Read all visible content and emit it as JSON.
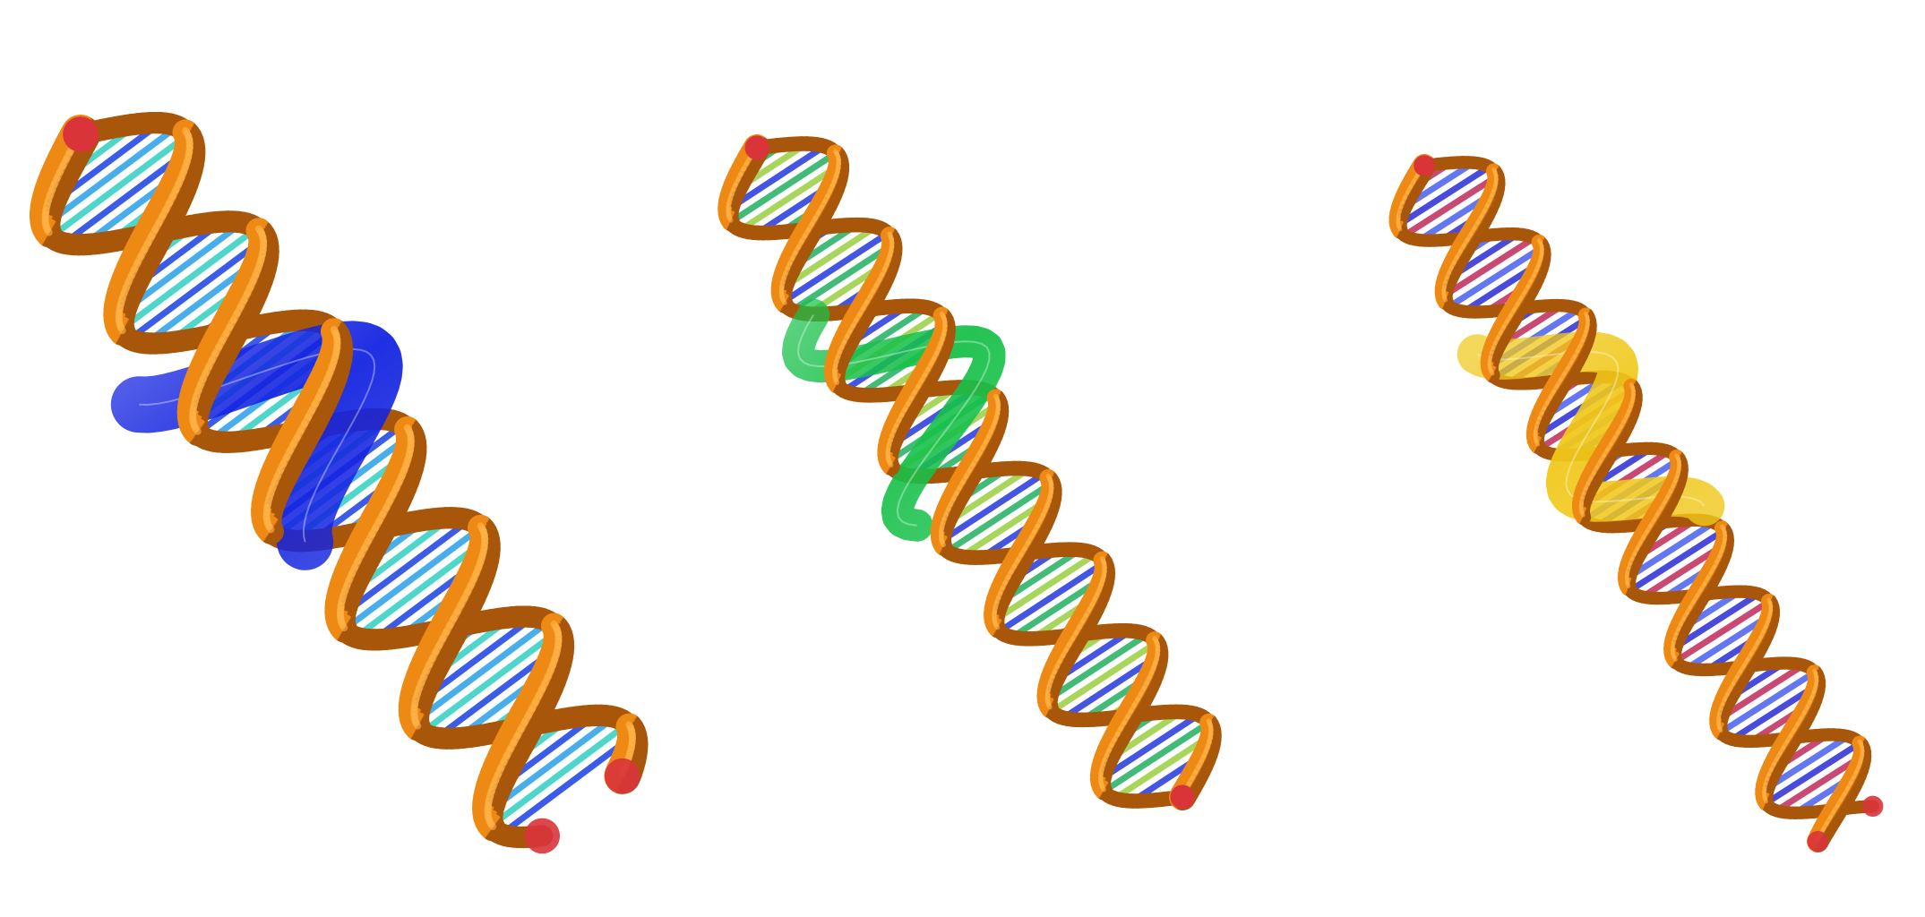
{
  "image": {
    "background": "#ffffff",
    "panels": [
      {
        "id": "panel-1",
        "subject": "dna-helix-ribbon",
        "backbone_color": "#ee8a14",
        "backbone_shadow": "#a8560a",
        "backbone_end_color": "#d8343a",
        "protein_color": "#1424e0",
        "base_colors": [
          "#1a3fe6",
          "#27a0e8",
          "#2fd0c0"
        ]
      },
      {
        "id": "panel-2",
        "subject": "dna-helix-ribbon",
        "backbone_color": "#ee8a14",
        "backbone_shadow": "#a8560a",
        "backbone_end_color": "#d8343a",
        "protein_color": "#18c04a",
        "base_colors": [
          "#2438e0",
          "#20b060",
          "#9ad040"
        ]
      },
      {
        "id": "panel-3",
        "subject": "dna-helix-ribbon",
        "backbone_color": "#ee8a14",
        "backbone_shadow": "#a8560a",
        "backbone_end_color": "#d8343a",
        "protein_color": "#f0c81a",
        "base_colors": [
          "#2a2cd8",
          "#c02a5a",
          "#4a60f0"
        ]
      }
    ]
  }
}
